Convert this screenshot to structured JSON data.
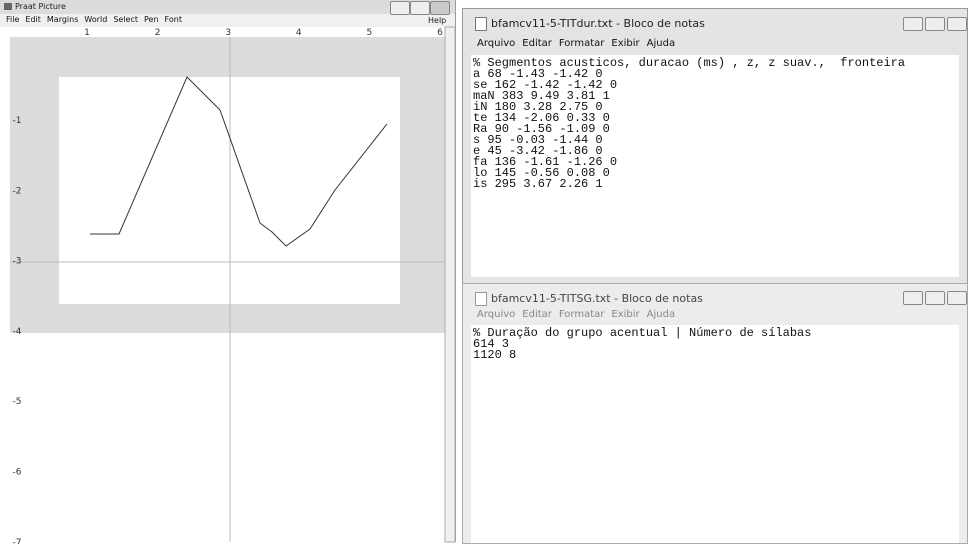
{
  "praat_window": {
    "title": "Praat Picture",
    "menu": [
      "File",
      "Edit",
      "Margins",
      "World",
      "Select",
      "Pen",
      "Font"
    ],
    "help": "Help",
    "ruler_top": [
      "1",
      "2",
      "3",
      "4",
      "5",
      "6"
    ],
    "ruler_left": [
      "-1",
      "-2",
      "-3",
      "-4",
      "-5",
      "-6",
      "-7"
    ]
  },
  "notepad_top": {
    "title": "bfamcv11-5-TITdur.txt - Bloco de notas",
    "menu": [
      "Arquivo",
      "Editar",
      "Formatar",
      "Exibir",
      "Ajuda"
    ],
    "lines": [
      "% Segmentos acusticos, duracao (ms) , z, z suav.,  fronteira",
      "a 68 -1.43 -1.42 0",
      "se 162 -1.42 -1.42 0",
      "maN 383 9.49 3.81 1",
      "iN 180 3.28 2.75 0",
      "te 134 -2.06 0.33 0",
      "Ra 90 -1.56 -1.09 0",
      "s 95 -0.03 -1.44 0",
      "e 45 -3.42 -1.86 0",
      "fa 136 -1.61 -1.26 0",
      "lo 145 -0.56 0.08 0",
      "is 295 3.67 2.26 1"
    ]
  },
  "notepad_bottom": {
    "title": "bfamcv11-5-TITSG.txt - Bloco de notas",
    "menu": [
      "Arquivo",
      "Editar",
      "Formatar",
      "Exibir",
      "Ajuda"
    ],
    "lines": [
      "% Duração do grupo acentual | Número de sílabas",
      "614 3",
      "1120 8"
    ]
  }
}
